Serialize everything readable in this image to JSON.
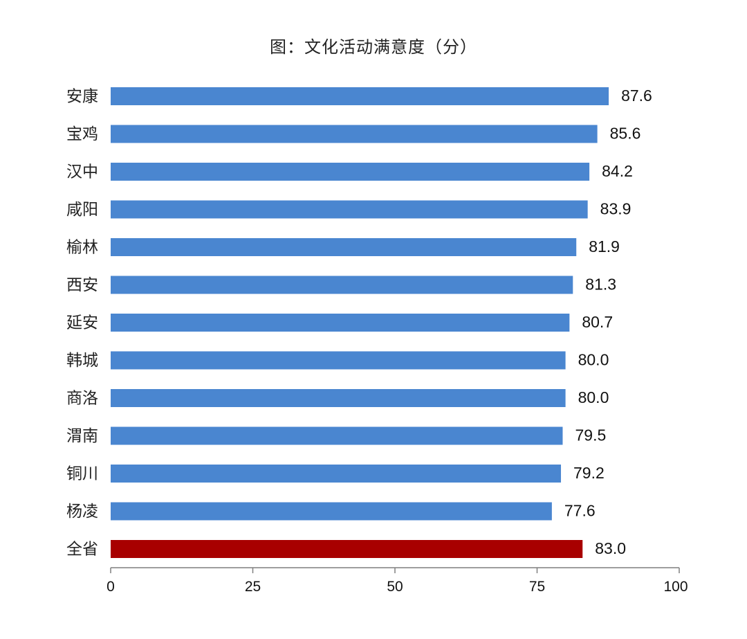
{
  "chart_data": {
    "type": "bar",
    "orientation": "horizontal",
    "title": "图：文化活动满意度（分）",
    "categories": [
      "安康",
      "宝鸡",
      "汉中",
      "咸阳",
      "榆林",
      "西安",
      "延安",
      "韩城",
      "商洛",
      "渭南",
      "铜川",
      "杨凌",
      "全省"
    ],
    "values": [
      87.6,
      85.6,
      84.2,
      83.9,
      81.9,
      81.3,
      80.7,
      80.0,
      80.0,
      79.5,
      79.2,
      77.6,
      83.0
    ],
    "value_labels": [
      "87.6",
      "85.6",
      "84.2",
      "83.9",
      "81.9",
      "81.3",
      "80.7",
      "80.0",
      "80.0",
      "79.5",
      "79.2",
      "77.6",
      "83.0"
    ],
    "xlim": [
      0,
      100
    ],
    "xticks": [
      0,
      25,
      50,
      75,
      100
    ],
    "xtick_labels": [
      "0",
      "25",
      "50",
      "75",
      "100"
    ],
    "xlabel": "",
    "ylabel": "",
    "grid": false,
    "legend": null,
    "colors": {
      "default_bar": "#4a86d0",
      "highlight_bar": "#a80000",
      "axis": "#7f7f7f"
    },
    "highlight_category": "全省"
  }
}
